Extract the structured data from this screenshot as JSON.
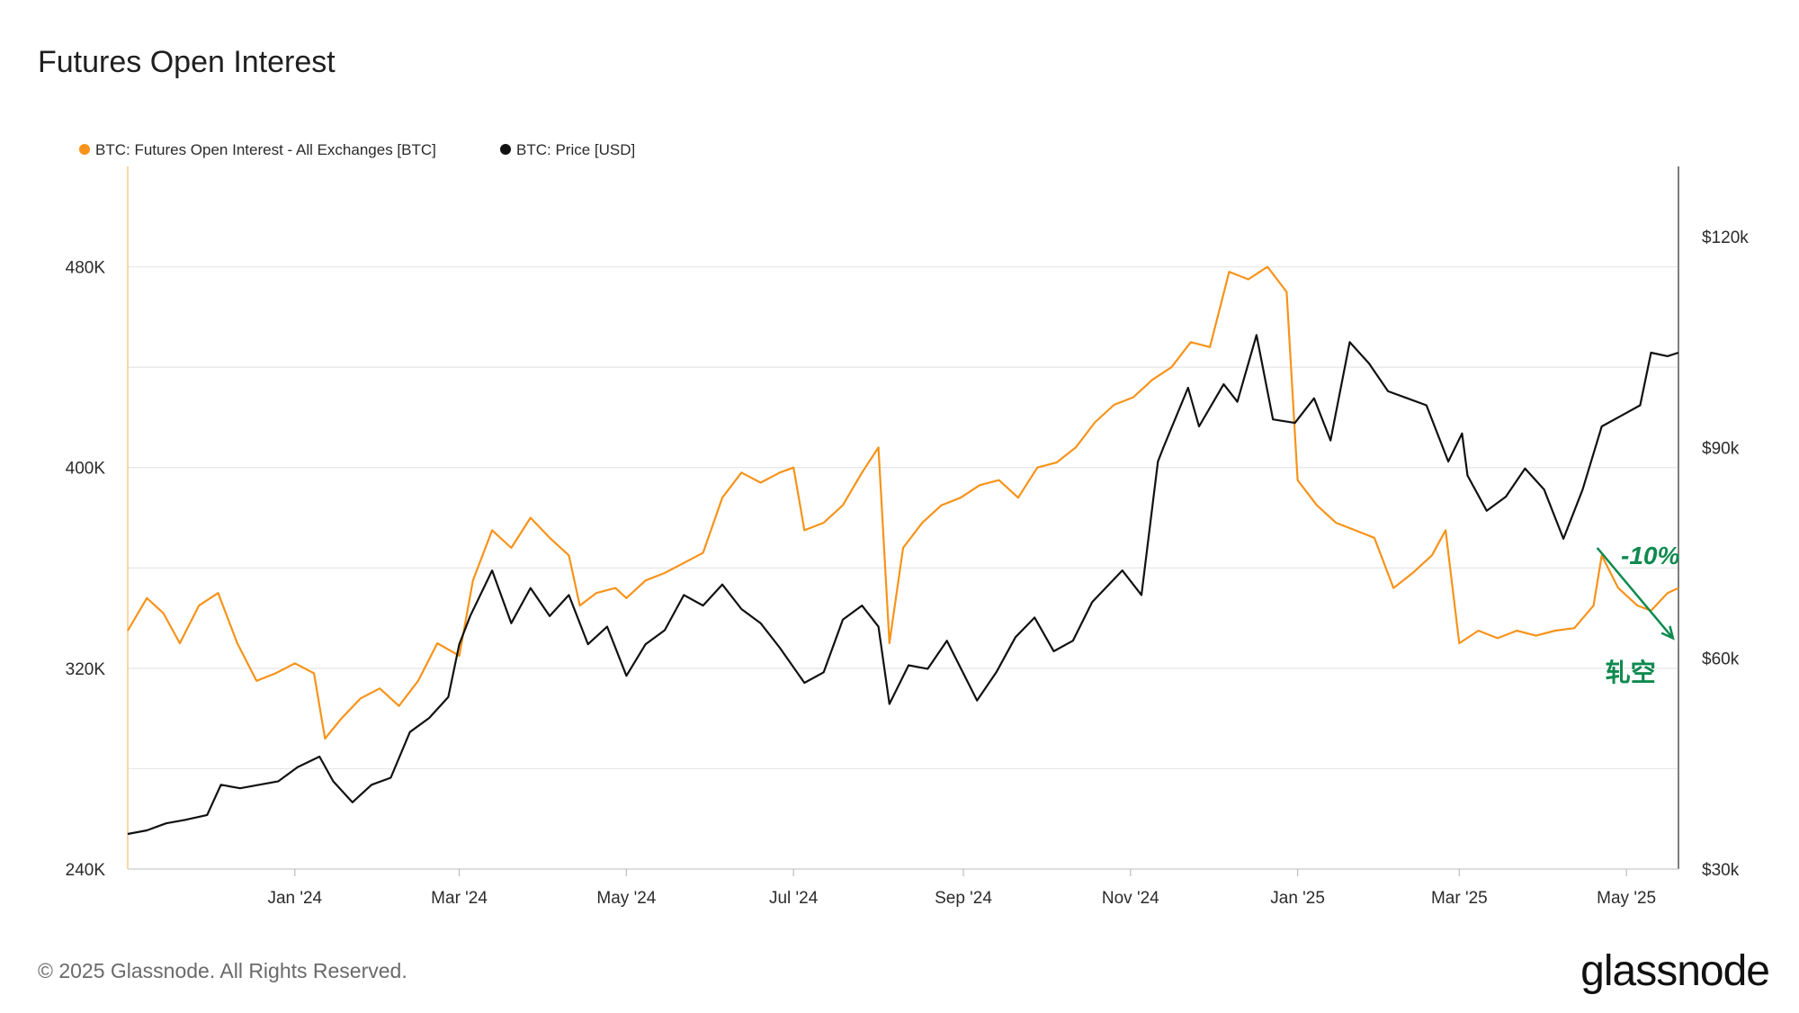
{
  "title": "Futures Open Interest",
  "footer": {
    "copyright": "© 2025 Glassnode. All Rights Reserved.",
    "brand": "glassnode"
  },
  "colors": {
    "oi": "#F7931A",
    "price": "#111111",
    "annotation": "#0E8A4F",
    "grid": "#E6E6E6"
  },
  "chart_data": {
    "type": "line",
    "title": "Futures Open Interest",
    "legend": [
      {
        "name": "BTC: Futures Open Interest - All Exchanges [BTC]",
        "color": "#F7931A",
        "axis": "left"
      },
      {
        "name": "BTC: Price [USD]",
        "color": "#111111",
        "axis": "right"
      }
    ],
    "legend_position": "top-left",
    "x_range": [
      "2023-11-01",
      "2025-05-20"
    ],
    "x_ticks": [
      {
        "label": "Jan '24",
        "date": "2024-01-01"
      },
      {
        "label": "Mar '24",
        "date": "2024-03-01"
      },
      {
        "label": "May '24",
        "date": "2024-05-01"
      },
      {
        "label": "Jul '24",
        "date": "2024-07-01"
      },
      {
        "label": "Sep '24",
        "date": "2024-09-01"
      },
      {
        "label": "Nov '24",
        "date": "2024-11-01"
      },
      {
        "label": "Jan '25",
        "date": "2025-01-01"
      },
      {
        "label": "Mar '25",
        "date": "2025-03-01"
      },
      {
        "label": "May '25",
        "date": "2025-05-01"
      }
    ],
    "y_left": {
      "range": [
        240000,
        520000
      ],
      "ticks": [
        {
          "label": "240K",
          "value": 240000
        },
        {
          "label": "320K",
          "value": 320000
        },
        {
          "label": "400K",
          "value": 400000
        },
        {
          "label": "480K",
          "value": 480000
        }
      ]
    },
    "y_right": {
      "range": [
        30000,
        130000
      ],
      "ticks": [
        {
          "label": "$30k",
          "value": 30000
        },
        {
          "label": "$60k",
          "value": 60000
        },
        {
          "label": "$90k",
          "value": 90000
        },
        {
          "label": "$120k",
          "value": 120000
        }
      ]
    },
    "gridlines": [
      240000,
      280000,
      320000,
      360000,
      400000,
      440000,
      480000
    ],
    "series": [
      {
        "name": "BTC: Futures Open Interest - All Exchanges [BTC]",
        "axis": "left",
        "points": [
          [
            "2023-11-01",
            335000
          ],
          [
            "2023-11-08",
            348000
          ],
          [
            "2023-11-14",
            342000
          ],
          [
            "2023-11-20",
            330000
          ],
          [
            "2023-11-27",
            345000
          ],
          [
            "2023-12-04",
            350000
          ],
          [
            "2023-12-11",
            330000
          ],
          [
            "2023-12-18",
            315000
          ],
          [
            "2023-12-25",
            318000
          ],
          [
            "2024-01-01",
            322000
          ],
          [
            "2024-01-08",
            318000
          ],
          [
            "2024-01-12",
            292000
          ],
          [
            "2024-01-18",
            300000
          ],
          [
            "2024-01-25",
            308000
          ],
          [
            "2024-02-01",
            312000
          ],
          [
            "2024-02-08",
            305000
          ],
          [
            "2024-02-15",
            315000
          ],
          [
            "2024-02-22",
            330000
          ],
          [
            "2024-03-01",
            325000
          ],
          [
            "2024-03-06",
            355000
          ],
          [
            "2024-03-13",
            375000
          ],
          [
            "2024-03-20",
            368000
          ],
          [
            "2024-03-27",
            380000
          ],
          [
            "2024-04-03",
            372000
          ],
          [
            "2024-04-10",
            365000
          ],
          [
            "2024-04-14",
            345000
          ],
          [
            "2024-04-20",
            350000
          ],
          [
            "2024-04-27",
            352000
          ],
          [
            "2024-05-01",
            348000
          ],
          [
            "2024-05-08",
            355000
          ],
          [
            "2024-05-15",
            358000
          ],
          [
            "2024-05-22",
            362000
          ],
          [
            "2024-05-29",
            366000
          ],
          [
            "2024-06-05",
            388000
          ],
          [
            "2024-06-12",
            398000
          ],
          [
            "2024-06-19",
            394000
          ],
          [
            "2024-06-26",
            398000
          ],
          [
            "2024-07-01",
            400000
          ],
          [
            "2024-07-05",
            375000
          ],
          [
            "2024-07-12",
            378000
          ],
          [
            "2024-07-19",
            385000
          ],
          [
            "2024-07-26",
            398000
          ],
          [
            "2024-08-01",
            408000
          ],
          [
            "2024-08-05",
            330000
          ],
          [
            "2024-08-10",
            368000
          ],
          [
            "2024-08-17",
            378000
          ],
          [
            "2024-08-24",
            385000
          ],
          [
            "2024-08-31",
            388000
          ],
          [
            "2024-09-07",
            393000
          ],
          [
            "2024-09-14",
            395000
          ],
          [
            "2024-09-21",
            388000
          ],
          [
            "2024-09-28",
            400000
          ],
          [
            "2024-10-05",
            402000
          ],
          [
            "2024-10-12",
            408000
          ],
          [
            "2024-10-19",
            418000
          ],
          [
            "2024-10-26",
            425000
          ],
          [
            "2024-11-02",
            428000
          ],
          [
            "2024-11-09",
            435000
          ],
          [
            "2024-11-16",
            440000
          ],
          [
            "2024-11-23",
            450000
          ],
          [
            "2024-11-30",
            448000
          ],
          [
            "2024-12-07",
            478000
          ],
          [
            "2024-12-14",
            475000
          ],
          [
            "2024-12-21",
            480000
          ],
          [
            "2024-12-28",
            470000
          ],
          [
            "2025-01-01",
            395000
          ],
          [
            "2025-01-08",
            385000
          ],
          [
            "2025-01-15",
            378000
          ],
          [
            "2025-01-22",
            375000
          ],
          [
            "2025-01-29",
            372000
          ],
          [
            "2025-02-05",
            352000
          ],
          [
            "2025-02-12",
            358000
          ],
          [
            "2025-02-19",
            365000
          ],
          [
            "2025-02-24",
            375000
          ],
          [
            "2025-03-01",
            330000
          ],
          [
            "2025-03-08",
            335000
          ],
          [
            "2025-03-15",
            332000
          ],
          [
            "2025-03-22",
            335000
          ],
          [
            "2025-03-29",
            333000
          ],
          [
            "2025-04-05",
            335000
          ],
          [
            "2025-04-12",
            336000
          ],
          [
            "2025-04-19",
            345000
          ],
          [
            "2025-04-22",
            365000
          ],
          [
            "2025-04-28",
            352000
          ],
          [
            "2025-05-05",
            345000
          ],
          [
            "2025-05-10",
            343000
          ],
          [
            "2025-05-16",
            350000
          ],
          [
            "2025-05-20",
            352000
          ]
        ]
      },
      {
        "name": "BTC: Price [USD]",
        "axis": "right",
        "points": [
          [
            "2023-11-01",
            35000
          ],
          [
            "2023-11-08",
            35500
          ],
          [
            "2023-11-15",
            36500
          ],
          [
            "2023-11-22",
            37000
          ],
          [
            "2023-11-30",
            37700
          ],
          [
            "2023-12-05",
            42000
          ],
          [
            "2023-12-12",
            41500
          ],
          [
            "2023-12-19",
            42000
          ],
          [
            "2023-12-26",
            42500
          ],
          [
            "2024-01-02",
            44500
          ],
          [
            "2024-01-10",
            46000
          ],
          [
            "2024-01-15",
            42500
          ],
          [
            "2024-01-22",
            39500
          ],
          [
            "2024-01-29",
            42000
          ],
          [
            "2024-02-05",
            43000
          ],
          [
            "2024-02-12",
            49500
          ],
          [
            "2024-02-19",
            51500
          ],
          [
            "2024-02-26",
            54500
          ],
          [
            "2024-03-01",
            62000
          ],
          [
            "2024-03-05",
            66000
          ],
          [
            "2024-03-13",
            72500
          ],
          [
            "2024-03-20",
            65000
          ],
          [
            "2024-03-27",
            70000
          ],
          [
            "2024-04-03",
            66000
          ],
          [
            "2024-04-10",
            69000
          ],
          [
            "2024-04-17",
            62000
          ],
          [
            "2024-04-24",
            64500
          ],
          [
            "2024-05-01",
            57500
          ],
          [
            "2024-05-08",
            62000
          ],
          [
            "2024-05-15",
            64000
          ],
          [
            "2024-05-22",
            69000
          ],
          [
            "2024-05-29",
            67500
          ],
          [
            "2024-06-05",
            70500
          ],
          [
            "2024-06-12",
            67000
          ],
          [
            "2024-06-19",
            65000
          ],
          [
            "2024-06-26",
            61500
          ],
          [
            "2024-07-05",
            56500
          ],
          [
            "2024-07-12",
            58000
          ],
          [
            "2024-07-19",
            65500
          ],
          [
            "2024-07-26",
            67500
          ],
          [
            "2024-08-01",
            64500
          ],
          [
            "2024-08-05",
            53500
          ],
          [
            "2024-08-12",
            59000
          ],
          [
            "2024-08-19",
            58500
          ],
          [
            "2024-08-26",
            62500
          ],
          [
            "2024-09-06",
            54000
          ],
          [
            "2024-09-13",
            58000
          ],
          [
            "2024-09-20",
            63000
          ],
          [
            "2024-09-27",
            65800
          ],
          [
            "2024-10-04",
            61000
          ],
          [
            "2024-10-11",
            62500
          ],
          [
            "2024-10-18",
            68000
          ],
          [
            "2024-10-29",
            72500
          ],
          [
            "2024-11-05",
            69000
          ],
          [
            "2024-11-11",
            88000
          ],
          [
            "2024-11-13",
            90000
          ],
          [
            "2024-11-22",
            98500
          ],
          [
            "2024-11-26",
            93000
          ],
          [
            "2024-12-05",
            99000
          ],
          [
            "2024-12-10",
            96500
          ],
          [
            "2024-12-17",
            106000
          ],
          [
            "2024-12-23",
            94000
          ],
          [
            "2024-12-31",
            93500
          ],
          [
            "2025-01-07",
            97000
          ],
          [
            "2025-01-13",
            91000
          ],
          [
            "2025-01-20",
            105000
          ],
          [
            "2025-01-27",
            102000
          ],
          [
            "2025-02-03",
            98000
          ],
          [
            "2025-02-10",
            97000
          ],
          [
            "2025-02-17",
            96000
          ],
          [
            "2025-02-25",
            88000
          ],
          [
            "2025-03-02",
            92000
          ],
          [
            "2025-03-04",
            86000
          ],
          [
            "2025-03-11",
            81000
          ],
          [
            "2025-03-18",
            83000
          ],
          [
            "2025-03-25",
            87000
          ],
          [
            "2025-04-01",
            84000
          ],
          [
            "2025-04-08",
            77000
          ],
          [
            "2025-04-15",
            84000
          ],
          [
            "2025-04-22",
            93000
          ],
          [
            "2025-04-29",
            94500
          ],
          [
            "2025-05-06",
            96000
          ],
          [
            "2025-05-10",
            103500
          ],
          [
            "2025-05-16",
            103000
          ],
          [
            "2025-05-20",
            103500
          ]
        ]
      }
    ],
    "annotations": [
      {
        "text": "-10%",
        "color": "#0E8A4F"
      },
      {
        "text": "轧空",
        "color": "#0E8A4F"
      }
    ]
  }
}
